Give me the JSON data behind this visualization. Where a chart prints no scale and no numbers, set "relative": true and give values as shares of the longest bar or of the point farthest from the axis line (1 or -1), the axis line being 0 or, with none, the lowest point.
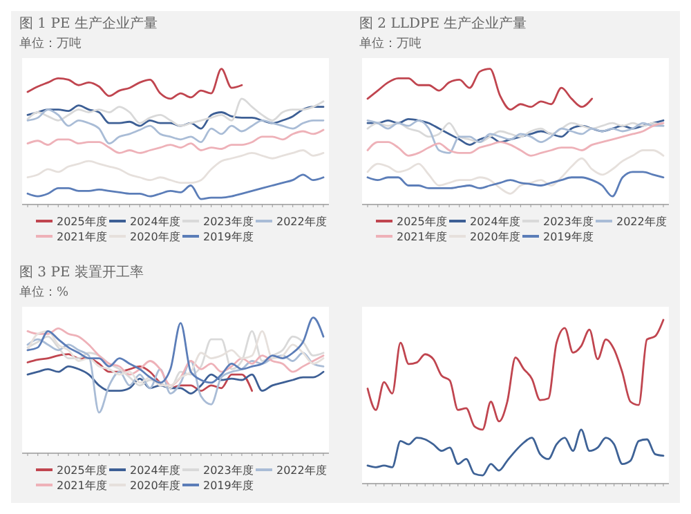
{
  "chart_data": [
    {
      "type": "line",
      "title": "图 1 PE 生产企业产量",
      "subtitle": "单位：万吨",
      "relative": true,
      "legend": "bottom",
      "categories": [
        null,
        null,
        null,
        null,
        null,
        null,
        null,
        null,
        null,
        null,
        null,
        null,
        null,
        null,
        null,
        null,
        null,
        null,
        null,
        null,
        null,
        null,
        null,
        null,
        null,
        null,
        null,
        null,
        null,
        null
      ],
      "series": [
        {
          "name": "2025年度",
          "color": "#c0454f",
          "values": [
            0.83,
            0.87,
            0.9,
            0.93,
            0.92,
            0.88,
            0.9,
            0.87,
            0.8,
            0.84,
            0.86,
            0.9,
            0.92,
            0.82,
            0.78,
            0.82,
            0.79,
            0.84,
            0.82,
            1.0,
            0.86,
            0.88,
            null,
            null,
            null,
            null,
            null,
            null,
            null,
            null
          ]
        },
        {
          "name": "2024年度",
          "color": "#3d5f95",
          "values": [
            0.66,
            0.68,
            0.7,
            0.7,
            0.69,
            0.73,
            0.7,
            0.68,
            0.6,
            0.6,
            0.61,
            0.58,
            0.62,
            0.6,
            0.6,
            0.58,
            0.6,
            0.56,
            0.66,
            0.68,
            0.65,
            0.64,
            0.64,
            0.62,
            0.6,
            0.62,
            0.65,
            0.7,
            0.72,
            0.72
          ]
        },
        {
          "name": "2023年度",
          "color": "#d9d9d9",
          "values": [
            0.63,
            0.68,
            0.65,
            0.62,
            0.66,
            0.7,
            0.68,
            0.7,
            0.68,
            0.72,
            0.68,
            0.6,
            0.64,
            0.66,
            0.62,
            0.58,
            0.6,
            0.62,
            0.64,
            0.66,
            0.62,
            0.78,
            0.72,
            0.66,
            0.62,
            0.68,
            0.7,
            0.7,
            0.72,
            0.76
          ]
        },
        {
          "name": "2022年度",
          "color": "#a9bcd6",
          "values": [
            0.62,
            0.64,
            0.7,
            0.66,
            0.58,
            0.62,
            0.6,
            0.56,
            0.45,
            0.5,
            0.52,
            0.55,
            0.58,
            0.52,
            0.5,
            0.48,
            0.5,
            0.46,
            0.56,
            0.52,
            0.58,
            0.54,
            0.58,
            0.62,
            0.6,
            0.58,
            0.56,
            0.6,
            0.62,
            0.62
          ]
        },
        {
          "name": "2021年度",
          "color": "#eeb1b8",
          "values": [
            0.45,
            0.47,
            0.44,
            0.48,
            0.48,
            0.45,
            0.46,
            0.46,
            0.42,
            0.38,
            0.4,
            0.38,
            0.4,
            0.42,
            0.44,
            0.42,
            0.45,
            0.4,
            0.42,
            0.41,
            0.44,
            0.44,
            0.46,
            0.5,
            0.5,
            0.48,
            0.52,
            0.54,
            0.52,
            0.55
          ]
        },
        {
          "name": "2020年度",
          "color": "#e6e0dc",
          "values": [
            0.2,
            0.22,
            0.26,
            0.24,
            0.28,
            0.3,
            0.32,
            0.3,
            0.28,
            0.26,
            0.22,
            0.2,
            0.18,
            0.2,
            0.18,
            0.16,
            0.16,
            0.18,
            0.26,
            0.32,
            0.34,
            0.36,
            0.38,
            0.36,
            0.34,
            0.36,
            0.38,
            0.4,
            0.36,
            0.38
          ]
        },
        {
          "name": "2019年度",
          "color": "#5b7db8",
          "values": [
            0.08,
            0.06,
            0.08,
            0.12,
            0.12,
            0.1,
            0.1,
            0.11,
            0.1,
            0.09,
            0.08,
            0.08,
            0.06,
            0.08,
            0.1,
            0.09,
            0.14,
            0.04,
            0.05,
            0.05,
            0.06,
            0.08,
            0.1,
            0.12,
            0.14,
            0.16,
            0.18,
            0.22,
            0.18,
            0.2
          ]
        }
      ]
    },
    {
      "type": "line",
      "title": "图 2 LLDPE 生产企业产量",
      "subtitle": "单位：万吨",
      "relative": true,
      "legend": "bottom",
      "categories": [
        null,
        null,
        null,
        null,
        null,
        null,
        null,
        null,
        null,
        null,
        null,
        null,
        null,
        null,
        null,
        null,
        null,
        null,
        null,
        null,
        null,
        null,
        null,
        null,
        null,
        null,
        null,
        null,
        null,
        null
      ],
      "series": [
        {
          "name": "2025年度",
          "color": "#c0454f",
          "values": [
            0.78,
            0.84,
            0.9,
            0.93,
            0.93,
            0.88,
            0.88,
            0.84,
            0.9,
            0.92,
            0.86,
            0.98,
            1.0,
            0.8,
            0.7,
            0.74,
            0.72,
            0.76,
            0.74,
            0.86,
            0.78,
            0.72,
            0.78,
            null,
            null,
            null,
            null,
            null,
            null,
            null
          ]
        },
        {
          "name": "2024年度",
          "color": "#3d5f95",
          "values": [
            0.6,
            0.6,
            0.62,
            0.6,
            0.63,
            0.62,
            0.6,
            0.56,
            0.52,
            0.48,
            0.44,
            0.48,
            0.5,
            0.46,
            0.48,
            0.5,
            0.52,
            0.54,
            0.52,
            0.5,
            0.56,
            0.58,
            0.56,
            0.54,
            0.56,
            0.58,
            0.56,
            0.58,
            0.6,
            0.62
          ]
        },
        {
          "name": "2023年度",
          "color": "#d9d9d9",
          "values": [
            0.56,
            0.6,
            0.58,
            0.6,
            0.56,
            0.54,
            0.5,
            0.52,
            0.6,
            0.5,
            0.48,
            0.46,
            0.5,
            0.54,
            0.52,
            0.5,
            0.54,
            0.56,
            0.52,
            0.56,
            0.6,
            0.58,
            0.56,
            0.58,
            0.6,
            0.58,
            0.6,
            0.58,
            0.6,
            0.58
          ]
        },
        {
          "name": "2022年度",
          "color": "#a9bcd6",
          "values": [
            0.62,
            0.6,
            0.56,
            0.6,
            0.58,
            0.62,
            0.56,
            0.4,
            0.38,
            0.5,
            0.5,
            0.46,
            0.52,
            0.5,
            0.48,
            0.52,
            0.5,
            0.46,
            0.5,
            0.56,
            0.54,
            0.52,
            0.56,
            0.54,
            0.56,
            0.54,
            0.56,
            0.6,
            0.58,
            0.58
          ]
        },
        {
          "name": "2021年度",
          "color": "#eeb1b8",
          "values": [
            0.4,
            0.46,
            0.46,
            0.42,
            0.36,
            0.38,
            0.42,
            0.45,
            0.4,
            0.38,
            0.38,
            0.42,
            0.44,
            0.46,
            0.44,
            0.4,
            0.36,
            0.38,
            0.4,
            0.42,
            0.42,
            0.4,
            0.44,
            0.46,
            0.48,
            0.5,
            0.52,
            0.54,
            0.58,
            0.6
          ]
        },
        {
          "name": "2020年度",
          "color": "#e6e0dc",
          "values": [
            0.24,
            0.3,
            0.28,
            0.24,
            0.26,
            0.3,
            0.22,
            0.14,
            0.16,
            0.18,
            0.18,
            0.2,
            0.18,
            0.12,
            0.08,
            0.14,
            0.16,
            0.18,
            0.14,
            0.2,
            0.28,
            0.34,
            0.26,
            0.22,
            0.26,
            0.32,
            0.36,
            0.4,
            0.4,
            0.36
          ]
        },
        {
          "name": "2019年度",
          "color": "#5b7db8",
          "values": [
            0.2,
            0.18,
            0.2,
            0.2,
            0.14,
            0.14,
            0.12,
            0.12,
            0.12,
            0.13,
            0.14,
            0.12,
            0.14,
            0.16,
            0.18,
            0.16,
            0.15,
            0.14,
            0.16,
            0.18,
            0.2,
            0.2,
            0.18,
            0.14,
            0.06,
            0.2,
            0.24,
            0.24,
            0.22,
            0.2
          ]
        }
      ]
    },
    {
      "type": "line",
      "title": "图 3 PE 装置开工率",
      "subtitle": "单位：%",
      "relative": true,
      "legend": "bottom",
      "categories": [
        null,
        null,
        null,
        null,
        null,
        null,
        null,
        null,
        null,
        null,
        null,
        null,
        null,
        null,
        null,
        null,
        null,
        null,
        null,
        null,
        null,
        null,
        null,
        null,
        null,
        null,
        null,
        null,
        null,
        null
      ],
      "series": [
        {
          "name": "2025年度",
          "color": "#c0454f",
          "values": [
            0.67,
            0.69,
            0.7,
            0.72,
            0.73,
            0.7,
            0.7,
            0.66,
            0.6,
            0.6,
            0.62,
            0.64,
            0.6,
            0.52,
            0.48,
            0.5,
            0.5,
            0.46,
            0.5,
            0.48,
            0.58,
            0.58,
            0.46,
            null,
            null,
            null,
            null,
            null,
            null,
            null
          ]
        },
        {
          "name": "2024年度",
          "color": "#3d5f95",
          "values": [
            0.58,
            0.6,
            0.62,
            0.6,
            0.64,
            0.62,
            0.58,
            0.5,
            0.46,
            0.46,
            0.48,
            0.55,
            0.48,
            0.5,
            0.48,
            0.48,
            0.44,
            0.5,
            0.58,
            0.54,
            0.55,
            0.54,
            0.58,
            0.46,
            0.5,
            0.52,
            0.54,
            0.56,
            0.56,
            0.6
          ]
        },
        {
          "name": "2023年度",
          "color": "#d9d9d9",
          "values": [
            0.78,
            0.82,
            0.86,
            0.78,
            0.7,
            0.7,
            0.74,
            0.72,
            0.66,
            0.62,
            0.56,
            0.5,
            0.54,
            0.52,
            0.48,
            0.6,
            0.58,
            0.64,
            0.84,
            0.84,
            0.62,
            0.68,
            0.9,
            0.68,
            0.72,
            0.76,
            0.86,
            0.82,
            0.72,
            0.74
          ]
        },
        {
          "name": "2022年度",
          "color": "#a9bcd6",
          "values": [
            0.8,
            0.84,
            0.8,
            0.76,
            0.8,
            0.76,
            0.72,
            0.3,
            0.5,
            0.6,
            0.5,
            0.58,
            0.48,
            0.62,
            0.44,
            0.52,
            0.68,
            0.42,
            0.36,
            0.56,
            0.6,
            0.62,
            0.68,
            0.66,
            0.7,
            0.72,
            0.68,
            0.74,
            0.66,
            0.64
          ]
        },
        {
          "name": "2021年度",
          "color": "#eeb1b8",
          "values": [
            0.9,
            0.88,
            0.88,
            0.92,
            0.88,
            0.86,
            0.8,
            0.72,
            0.66,
            0.64,
            0.58,
            0.62,
            0.68,
            0.62,
            0.5,
            0.56,
            0.68,
            0.62,
            0.66,
            0.6,
            0.64,
            0.7,
            0.66,
            0.72,
            0.68,
            0.66,
            0.6,
            0.64,
            0.68,
            0.72
          ]
        },
        {
          "name": "2020年度",
          "color": "#e6e0dc",
          "values": [
            0.76,
            0.88,
            0.9,
            0.8,
            0.76,
            0.68,
            0.7,
            0.64,
            0.62,
            0.58,
            0.6,
            0.52,
            0.56,
            0.5,
            0.5,
            0.56,
            0.6,
            0.74,
            0.7,
            0.72,
            0.76,
            0.7,
            0.72,
            0.9,
            0.7,
            0.72,
            0.8,
            0.74,
            0.66,
            0.7
          ]
        },
        {
          "name": "2019年度",
          "color": "#5b7db8",
          "values": [
            0.76,
            0.78,
            0.9,
            0.84,
            0.78,
            0.74,
            0.7,
            0.7,
            0.64,
            0.7,
            0.66,
            0.62,
            0.56,
            0.52,
            0.62,
            0.96,
            0.6,
            0.54,
            0.52,
            0.58,
            0.66,
            0.62,
            0.64,
            0.66,
            0.72,
            0.7,
            0.74,
            0.82,
            1.0,
            0.86
          ]
        }
      ]
    },
    {
      "type": "line",
      "relative": true,
      "categories": [
        null,
        null,
        null,
        null,
        null,
        null,
        null,
        null,
        null,
        null,
        null,
        null,
        null,
        null,
        null,
        null,
        null,
        null,
        null,
        null,
        null,
        null,
        null,
        null,
        null,
        null,
        null,
        null,
        null,
        null,
        null,
        null,
        null,
        null,
        null,
        null,
        null
      ],
      "series": [
        {
          "color": "#c0454f",
          "values": [
            0.58,
            0.45,
            0.62,
            0.55,
            0.86,
            0.73,
            0.74,
            0.79,
            0.76,
            0.66,
            0.63,
            0.45,
            0.46,
            0.35,
            0.33,
            0.5,
            0.38,
            0.5,
            0.77,
            0.7,
            0.64,
            0.51,
            0.52,
            0.86,
            0.95,
            0.8,
            0.84,
            0.94,
            0.76,
            0.88,
            0.82,
            0.68,
            0.5,
            0.48,
            0.88,
            0.9,
            1.0
          ]
        },
        {
          "color": "#3e6296",
          "values": [
            0.11,
            0.1,
            0.11,
            0.1,
            0.26,
            0.24,
            0.28,
            0.27,
            0.24,
            0.2,
            0.22,
            0.12,
            0.15,
            0.06,
            0.05,
            0.12,
            0.08,
            0.14,
            0.2,
            0.25,
            0.28,
            0.18,
            0.15,
            0.24,
            0.28,
            0.2,
            0.33,
            0.2,
            0.22,
            0.28,
            0.24,
            0.12,
            0.14,
            0.26,
            0.27,
            0.18,
            0.17
          ]
        }
      ]
    }
  ]
}
